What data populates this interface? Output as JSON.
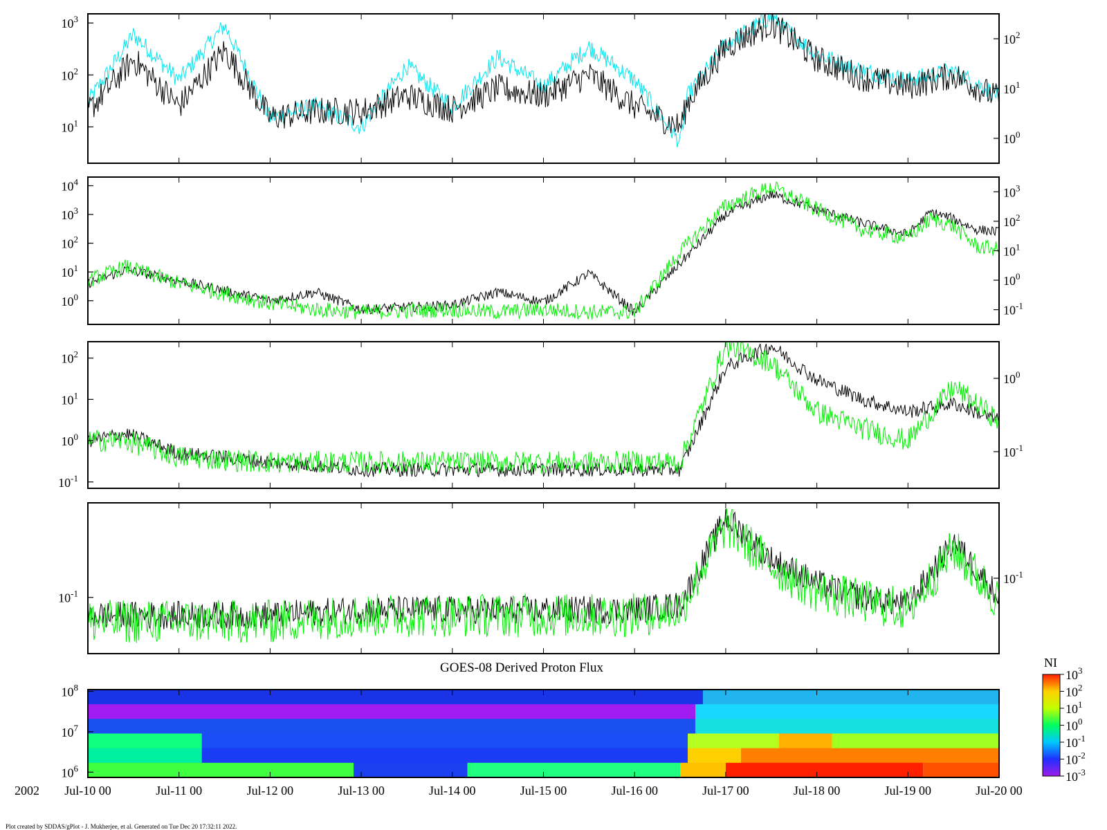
{
  "chart_data": [
    {
      "type": "line",
      "panel": 1,
      "yscale": "log",
      "yticks_left": [
        "10",
        "10",
        "10"
      ],
      "yticks_left_exp": [
        "3",
        "2",
        "1"
      ],
      "ytick_left_values": [
        1000,
        100,
        10
      ],
      "ylim_left": [
        2,
        1500
      ],
      "yticks_right": [
        "10",
        "10",
        "10"
      ],
      "yticks_right_exp": [
        "2",
        "1",
        "0"
      ],
      "series": [
        {
          "color": "#00e5ee",
          "x_hours": [
            0,
            12,
            24,
            36,
            48,
            60,
            72,
            84,
            96,
            108,
            120,
            132,
            144,
            156,
            158,
            168,
            180,
            192,
            204,
            216,
            228,
            240
          ],
          "values": [
            30,
            600,
            80,
            900,
            15,
            25,
            10,
            150,
            25,
            220,
            60,
            350,
            80,
            5,
            40,
            400,
            1300,
            250,
            120,
            80,
            120,
            40
          ]
        },
        {
          "color": "#000000",
          "x_hours": [
            0,
            12,
            24,
            36,
            48,
            60,
            72,
            84,
            96,
            108,
            120,
            132,
            144,
            156,
            158,
            168,
            180,
            192,
            204,
            216,
            228,
            240
          ],
          "values": [
            20,
            200,
            25,
            300,
            15,
            20,
            20,
            40,
            22,
            55,
            40,
            100,
            25,
            10,
            30,
            350,
            1000,
            200,
            90,
            60,
            100,
            35
          ]
        }
      ]
    },
    {
      "type": "line",
      "panel": 2,
      "yscale": "log",
      "yticks_left": [
        "10",
        "10",
        "10",
        "10",
        "10"
      ],
      "yticks_left_exp": [
        "4",
        "3",
        "2",
        "1",
        "0"
      ],
      "ytick_left_values": [
        10000,
        1000,
        100,
        10,
        1
      ],
      "ylim_left": [
        0.15,
        20000
      ],
      "yticks_right": [
        "10",
        "10",
        "10",
        "10",
        "10"
      ],
      "yticks_right_exp": [
        "3",
        "2",
        "1",
        "0",
        "-1"
      ],
      "series": [
        {
          "color": "#000000",
          "x_hours": [
            0,
            10,
            24,
            48,
            60,
            72,
            96,
            108,
            120,
            132,
            144,
            156,
            168,
            180,
            192,
            204,
            216,
            222,
            228,
            234,
            240
          ],
          "values": [
            4,
            12,
            5,
            1,
            2,
            0.5,
            0.7,
            2,
            0.9,
            9,
            0.4,
            20,
            1000,
            5000,
            1500,
            500,
            200,
            1200,
            700,
            300,
            250
          ]
        },
        {
          "color": "#00ee00",
          "x_hours": [
            0,
            10,
            24,
            48,
            60,
            72,
            96,
            108,
            120,
            132,
            144,
            156,
            168,
            180,
            192,
            204,
            216,
            222,
            228,
            234,
            240
          ],
          "values": [
            5,
            15,
            4,
            0.8,
            0.5,
            0.4,
            0.5,
            0.4,
            0.5,
            0.4,
            0.4,
            50,
            2000,
            9000,
            1500,
            300,
            150,
            700,
            400,
            80,
            60
          ]
        }
      ]
    },
    {
      "type": "line",
      "panel": 3,
      "yscale": "log",
      "yticks_left": [
        "10",
        "10",
        "10",
        "10"
      ],
      "yticks_left_exp": [
        "2",
        "1",
        "0",
        "-1"
      ],
      "ytick_left_values": [
        100,
        10,
        1,
        0.1
      ],
      "ylim_left": [
        0.07,
        250
      ],
      "yticks_right": [
        "10",
        "10"
      ],
      "yticks_right_exp": [
        "0",
        "-1"
      ],
      "series": [
        {
          "color": "#000000",
          "x_hours": [
            0,
            10,
            24,
            48,
            72,
            96,
            120,
            144,
            156,
            168,
            180,
            192,
            204,
            216,
            228,
            240
          ],
          "values": [
            1,
            1.5,
            0.5,
            0.3,
            0.2,
            0.2,
            0.2,
            0.2,
            0.2,
            60,
            200,
            30,
            10,
            5,
            8,
            3
          ]
        },
        {
          "color": "#00ee00",
          "x_hours": [
            0,
            10,
            24,
            48,
            72,
            96,
            120,
            144,
            156,
            168,
            180,
            192,
            204,
            216,
            228,
            240
          ],
          "values": [
            1,
            1,
            0.4,
            0.3,
            0.3,
            0.3,
            0.3,
            0.3,
            0.3,
            200,
            80,
            5,
            2,
            1,
            20,
            3
          ]
        }
      ]
    },
    {
      "type": "line",
      "panel": 4,
      "yscale": "log",
      "yticks_left": [
        "10"
      ],
      "yticks_left_exp": [
        "-1"
      ],
      "ytick_left_values": [
        0.1
      ],
      "ylim_left": [
        0.02,
        1.5
      ],
      "yticks_right": [
        "10"
      ],
      "yticks_right_exp": [
        "-1"
      ],
      "series": [
        {
          "color": "#000000",
          "x_hours": [
            0,
            24,
            48,
            72,
            96,
            120,
            144,
            156,
            168,
            180,
            192,
            204,
            216,
            228,
            240
          ],
          "values": [
            0.06,
            0.06,
            0.06,
            0.07,
            0.07,
            0.07,
            0.07,
            0.08,
            1,
            0.3,
            0.15,
            0.1,
            0.08,
            0.5,
            0.1
          ]
        },
        {
          "color": "#00ee00",
          "x_hours": [
            0,
            24,
            48,
            72,
            96,
            120,
            144,
            156,
            168,
            180,
            192,
            204,
            216,
            228,
            240
          ],
          "values": [
            0.05,
            0.05,
            0.05,
            0.06,
            0.06,
            0.06,
            0.06,
            0.07,
            0.8,
            0.25,
            0.12,
            0.09,
            0.07,
            0.4,
            0.09
          ]
        }
      ]
    },
    {
      "type": "heatmap",
      "panel": 5,
      "title": "GOES-08 Derived Proton Flux",
      "yscale": "log",
      "yticks_left": [
        "10",
        "10",
        "10"
      ],
      "yticks_left_exp": [
        "8",
        "7",
        "6"
      ],
      "colorbar": {
        "label": "NI",
        "ticks": [
          "10",
          "10",
          "10",
          "10",
          "10",
          "10",
          "10"
        ],
        "ticks_exp": [
          "3",
          "2",
          "1",
          "0",
          "-1",
          "-2",
          "-3"
        ],
        "colors": [
          "#9b1de6",
          "#2030ff",
          "#00c8ff",
          "#00ff60",
          "#c0ff00",
          "#ffd000",
          "#ff2000"
        ]
      },
      "bands_top_to_bottom": [
        {
          "segments": [
            [
              0,
              162,
              "#1a33e6"
            ],
            [
              162,
              240,
              "#22b4ee"
            ]
          ]
        },
        {
          "segments": [
            [
              0,
              160,
              "#a01cf0"
            ],
            [
              160,
              240,
              "#18d8ff"
            ]
          ]
        },
        {
          "segments": [
            [
              0,
              160,
              "#1a50f0"
            ],
            [
              160,
              240,
              "#16e0e0"
            ]
          ]
        },
        {
          "segments": [
            [
              0,
              30,
              "#10ff80"
            ],
            [
              30,
              158,
              "#1a4df5"
            ],
            [
              158,
              182,
              "#b4ff20"
            ],
            [
              182,
              196,
              "#ffb000"
            ],
            [
              196,
              240,
              "#a0ff20"
            ]
          ]
        },
        {
          "segments": [
            [
              0,
              30,
              "#00f0a0"
            ],
            [
              30,
              158,
              "#1a3cf5"
            ],
            [
              158,
              172,
              "#ffd000"
            ],
            [
              172,
              240,
              "#ff8000"
            ]
          ]
        },
        {
          "segments": [
            [
              0,
              70,
              "#40ff40"
            ],
            [
              70,
              100,
              "#1a40f0"
            ],
            [
              100,
              156,
              "#20ff80"
            ],
            [
              156,
              168,
              "#ffc000"
            ],
            [
              168,
              220,
              "#ff2000"
            ],
            [
              220,
              240,
              "#ff5000"
            ]
          ]
        }
      ]
    }
  ],
  "x_axis": {
    "year_label": "2002",
    "ticks": [
      "Jul-10 00",
      "Jul-11 00",
      "Jul-12 00",
      "Jul-13 00",
      "Jul-14 00",
      "Jul-15 00",
      "Jul-16 00",
      "Jul-17 00",
      "Jul-18 00",
      "Jul-19 00",
      "Jul-20 00"
    ],
    "range_hours": [
      0,
      240
    ]
  },
  "footer": {
    "credit": "Plot created by SDDAS/gPlot - J. Mukherjee, et al.  Generated on Tue Dec 20 17:32:11 2022."
  }
}
